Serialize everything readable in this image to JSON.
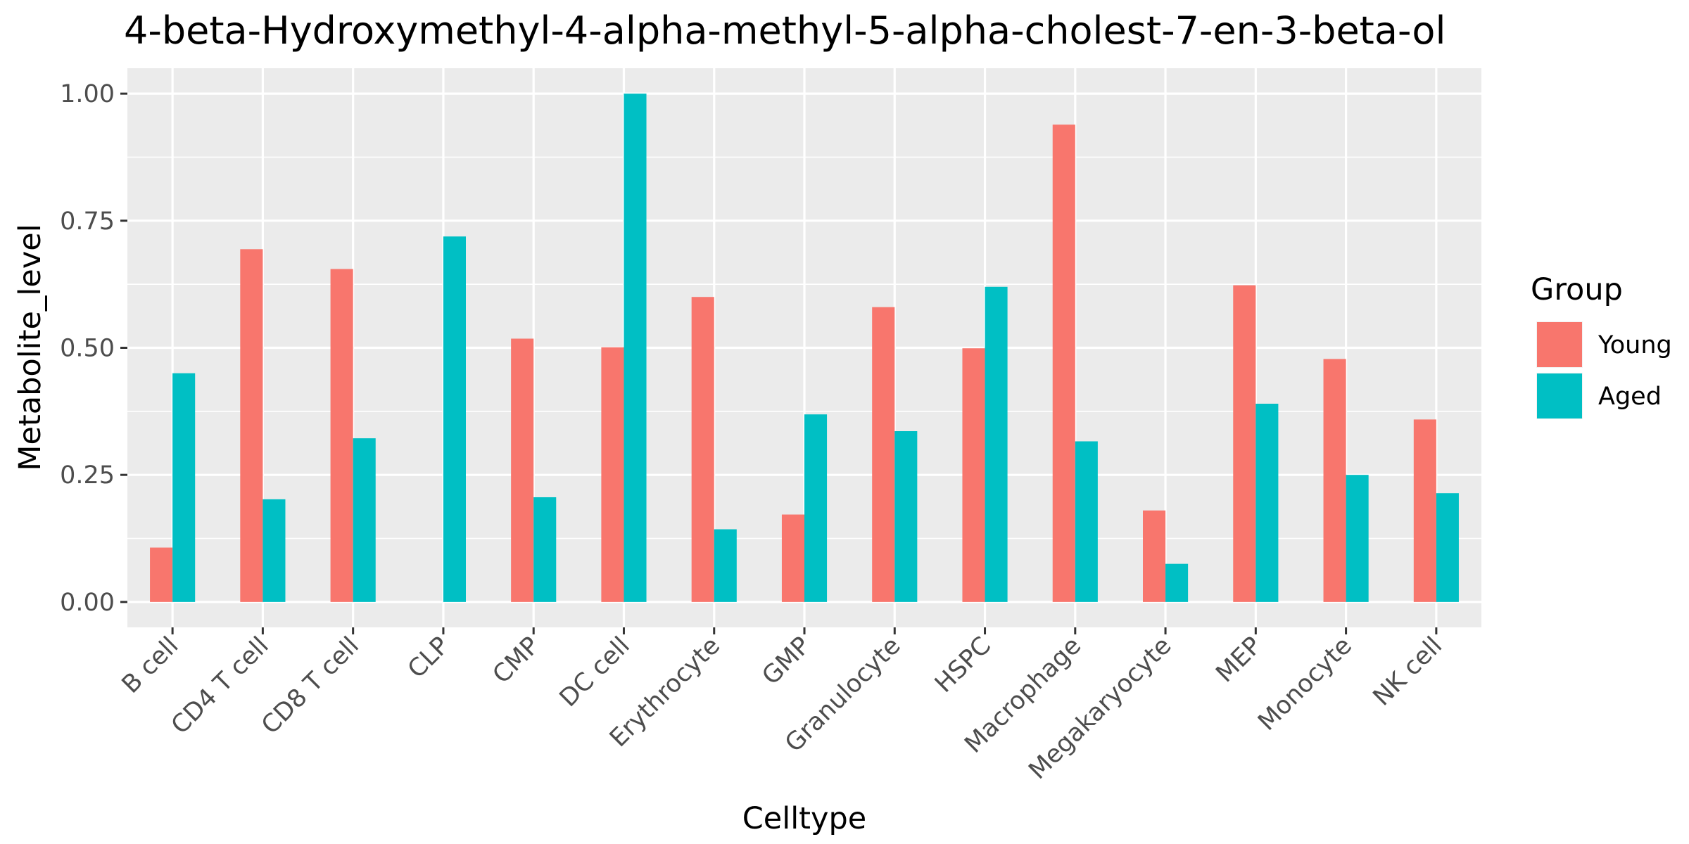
{
  "chart_data": {
    "type": "bar",
    "title": "4-beta-Hydroxymethyl-4-alpha-methyl-5-alpha-cholest-7-en-3-beta-ol",
    "xlabel": "Celltype",
    "ylabel": "Metabolite_level",
    "categories": [
      "B cell",
      "CD4 T cell",
      "CD8 T cell",
      "CLP",
      "CMP",
      "DC cell",
      "Erythrocyte",
      "GMP",
      "Granulocyte",
      "HSPC",
      "Macrophage",
      "Megakaryocyte",
      "MEP",
      "Monocyte",
      "NK cell"
    ],
    "series": [
      {
        "name": "Young",
        "color": "#F8766D",
        "values": [
          0.107,
          0.694,
          0.655,
          0.0,
          0.518,
          0.501,
          0.6,
          0.172,
          0.58,
          0.499,
          0.939,
          0.18,
          0.623,
          0.478,
          0.359
        ]
      },
      {
        "name": "Aged",
        "color": "#00BFC4",
        "values": [
          0.45,
          0.202,
          0.322,
          0.719,
          0.206,
          1.0,
          0.143,
          0.369,
          0.336,
          0.62,
          0.316,
          0.075,
          0.39,
          0.25,
          0.214
        ]
      }
    ],
    "ylim": [
      -0.05,
      1.05
    ],
    "yticks": [
      0.0,
      0.25,
      0.5,
      0.75,
      1.0
    ],
    "ytick_labels": [
      "0.00",
      "0.25",
      "0.50",
      "0.75",
      "1.00"
    ],
    "legend": {
      "title": "Group",
      "position": "right"
    },
    "grid": true,
    "panel_background": "#EBEBEB"
  }
}
